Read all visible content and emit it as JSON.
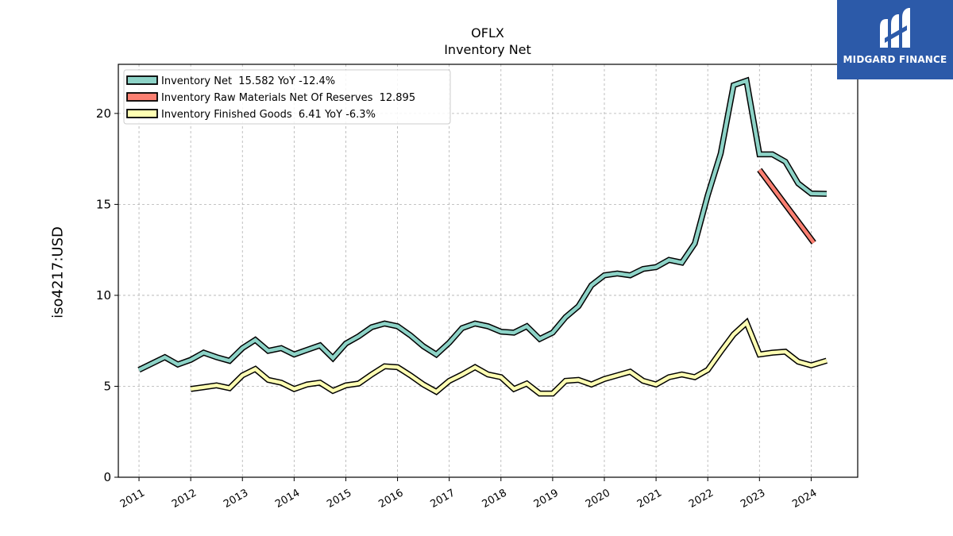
{
  "logo": {
    "text": "MIDGARD FINANCE",
    "bg_color": "#2c5aa9"
  },
  "chart_data": {
    "type": "line",
    "title": "OFLX",
    "subtitle": "Inventory Net",
    "xlabel": "",
    "ylabel": "iso4217:USD",
    "ylim": [
      0,
      22.7
    ],
    "xlim": [
      2010.6,
      2024.9
    ],
    "yticks": [
      0,
      5,
      10,
      15,
      20
    ],
    "xticks": [
      "2011",
      "2012",
      "2013",
      "2014",
      "2015",
      "2016",
      "2017",
      "2018",
      "2019",
      "2020",
      "2021",
      "2022",
      "2023",
      "2024"
    ],
    "grid": true,
    "legend_position": "top-left",
    "series": [
      {
        "name": "Inventory Net  15.582 YoY -12.4%",
        "color": "#8dd3c7",
        "x": [
          2011.0,
          2011.25,
          2011.5,
          2011.75,
          2012.0,
          2012.25,
          2012.5,
          2012.75,
          2013.0,
          2013.25,
          2013.5,
          2013.75,
          2014.0,
          2014.25,
          2014.5,
          2014.75,
          2015.0,
          2015.25,
          2015.5,
          2015.75,
          2016.0,
          2016.25,
          2016.5,
          2016.75,
          2017.0,
          2017.25,
          2017.5,
          2017.75,
          2018.0,
          2018.25,
          2018.5,
          2018.75,
          2019.0,
          2019.25,
          2019.5,
          2019.75,
          2020.0,
          2020.25,
          2020.5,
          2020.75,
          2021.0,
          2021.25,
          2021.5,
          2021.75,
          2022.0,
          2022.25,
          2022.5,
          2022.75,
          2023.0,
          2023.25,
          2023.5,
          2023.75,
          2024.0,
          2024.3
        ],
        "values": [
          5.9,
          6.25,
          6.6,
          6.2,
          6.45,
          6.85,
          6.6,
          6.4,
          7.1,
          7.55,
          6.95,
          7.1,
          6.75,
          7.0,
          7.25,
          6.55,
          7.35,
          7.75,
          8.25,
          8.45,
          8.3,
          7.8,
          7.2,
          6.75,
          7.4,
          8.2,
          8.45,
          8.3,
          8.0,
          7.95,
          8.3,
          7.6,
          7.95,
          8.8,
          9.4,
          10.55,
          11.1,
          11.2,
          11.1,
          11.45,
          11.55,
          11.95,
          11.8,
          12.85,
          15.5,
          17.8,
          21.55,
          21.8,
          17.75,
          17.75,
          17.35,
          16.15,
          15.6,
          15.582
        ]
      },
      {
        "name": "Inventory Raw Materials Net Of Reserves  12.895",
        "color": "#fb8072",
        "x": [
          2023.0,
          2024.05
        ],
        "values": [
          16.9,
          12.895
        ]
      },
      {
        "name": "Inventory Finished Goods  6.41 YoY -6.3%",
        "color": "#ffffb3",
        "x": [
          2012.0,
          2012.25,
          2012.5,
          2012.75,
          2013.0,
          2013.25,
          2013.5,
          2013.75,
          2014.0,
          2014.25,
          2014.5,
          2014.75,
          2015.0,
          2015.25,
          2015.5,
          2015.75,
          2016.0,
          2016.25,
          2016.5,
          2016.75,
          2017.0,
          2017.25,
          2017.5,
          2017.75,
          2018.0,
          2018.25,
          2018.5,
          2018.75,
          2019.0,
          2019.25,
          2019.5,
          2019.75,
          2020.0,
          2020.25,
          2020.5,
          2020.75,
          2021.0,
          2021.25,
          2021.5,
          2021.75,
          2022.0,
          2022.25,
          2022.5,
          2022.75,
          2023.0,
          2023.25,
          2023.5,
          2023.75,
          2024.0,
          2024.3
        ],
        "values": [
          4.85,
          4.95,
          5.05,
          4.9,
          5.6,
          5.95,
          5.35,
          5.2,
          4.85,
          5.1,
          5.2,
          4.75,
          5.05,
          5.15,
          5.65,
          6.1,
          6.05,
          5.6,
          5.1,
          4.7,
          5.3,
          5.65,
          6.05,
          5.65,
          5.5,
          4.85,
          5.15,
          4.6,
          4.6,
          5.3,
          5.35,
          5.1,
          5.4,
          5.6,
          5.8,
          5.3,
          5.1,
          5.5,
          5.65,
          5.5,
          5.9,
          6.9,
          7.85,
          8.5,
          6.75,
          6.85,
          6.9,
          6.35,
          6.15,
          6.41
        ]
      }
    ]
  }
}
